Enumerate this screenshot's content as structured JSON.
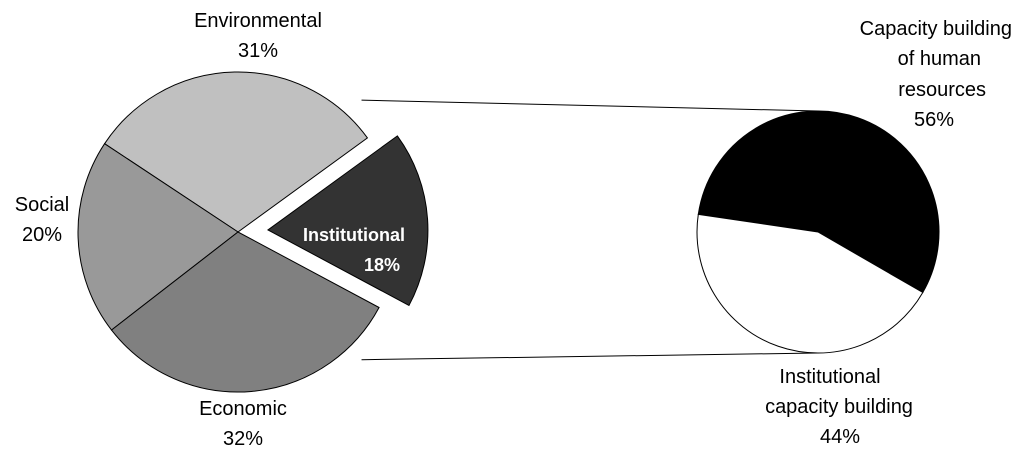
{
  "chart_data": [
    {
      "type": "pie",
      "slices": [
        {
          "label": "Environmental",
          "value": 31,
          "value_label": "31%",
          "color": "#c0c0c0"
        },
        {
          "label": "Institutional",
          "value": 18,
          "value_label": "18%",
          "color": "#333333",
          "exploded": true
        },
        {
          "label": "Economic",
          "value": 32,
          "value_label": "32%",
          "color": "#808080"
        },
        {
          "label": "Social",
          "value": 20,
          "value_label": "20%",
          "color": "#999999"
        }
      ]
    },
    {
      "type": "pie",
      "breakdown_of": "Institutional",
      "slices": [
        {
          "label": "Capacity building of human resources",
          "label_lines": [
            "Capacity building",
            "of human",
            "resources"
          ],
          "value": 56,
          "value_label": "56%",
          "color": "#000000"
        },
        {
          "label": "Institutional capacity building",
          "label_lines": [
            "Institutional",
            "capacity building"
          ],
          "value": 44,
          "value_label": "44%",
          "color": "#ffffff"
        }
      ]
    }
  ]
}
